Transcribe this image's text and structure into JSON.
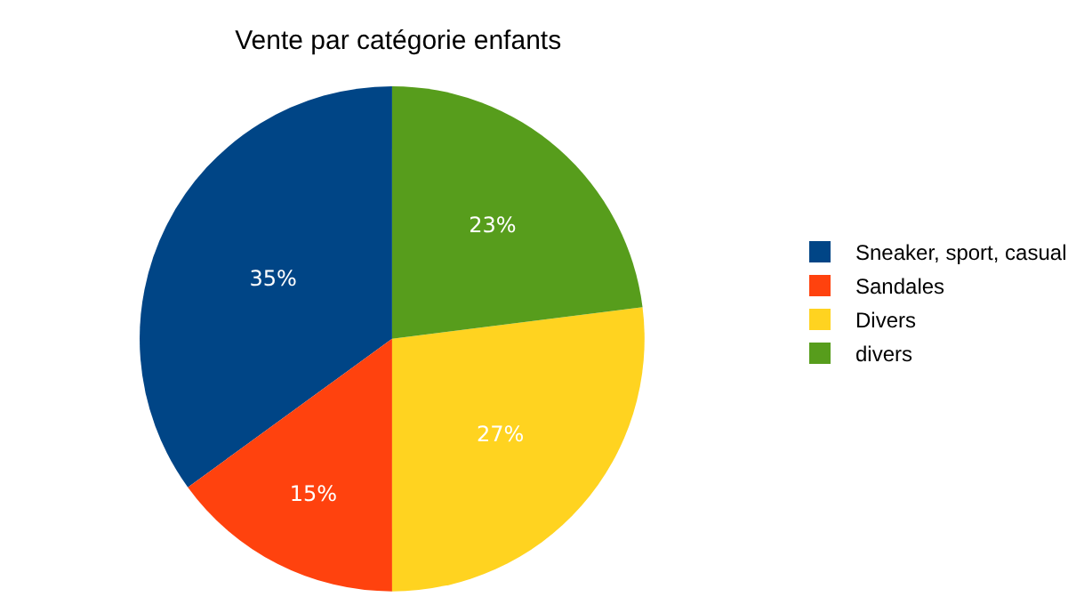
{
  "chart_data": {
    "type": "pie",
    "title": "Vente par catégorie enfants",
    "categories": [
      "Sneaker, sport, casual",
      "Sandales",
      "Divers",
      "divers"
    ],
    "values": [
      35,
      15,
      27,
      23
    ],
    "value_labels": [
      "35%",
      "15%",
      "27%",
      "23%"
    ],
    "colors": [
      "#004586",
      "#ff420e",
      "#ffd320",
      "#579d1c"
    ],
    "legend": "right"
  }
}
